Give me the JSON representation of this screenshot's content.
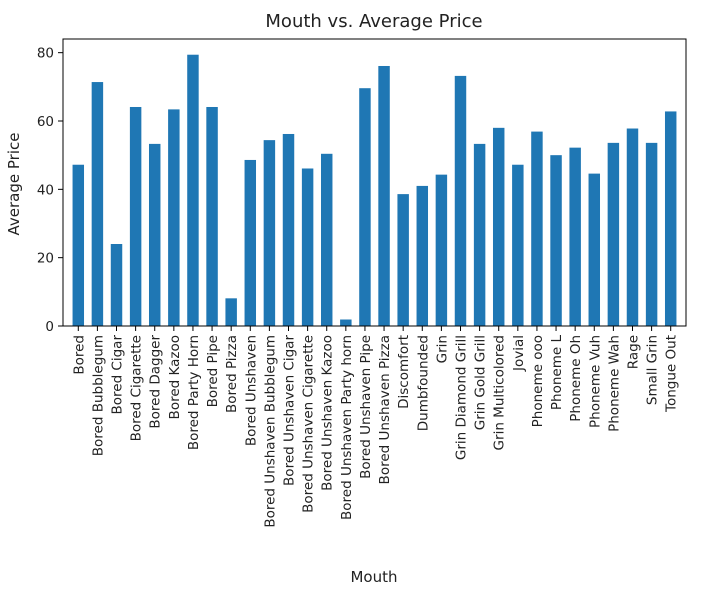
{
  "chart_data": {
    "type": "bar",
    "title": "Mouth vs. Average Price",
    "xlabel": "Mouth",
    "ylabel": "Average Price",
    "ylim": [
      0,
      84
    ],
    "yticks": [
      0,
      20,
      40,
      60,
      80
    ],
    "grid": false,
    "color": "#1f77b4",
    "categories": [
      "Bored",
      "Bored Bubblegum",
      "Bored Cigar",
      "Bored Cigarette",
      "Bored Dagger",
      "Bored Kazoo",
      "Bored Party Horn",
      "Bored Pipe",
      "Bored Pizza",
      "Bored Unshaven",
      "Bored Unshaven Bubblegum",
      "Bored Unshaven Cigar",
      "Bored Unshaven Cigarette",
      "Bored Unshaven Kazoo",
      "Bored Unshaven Party horn",
      "Bored Unshaven Pipe",
      "Bored Unshaven Pizza",
      "Discomfort",
      "Dumbfounded",
      "Grin",
      "Grin Diamond Grill",
      "Grin Gold Grill",
      "Grin Multicolored",
      "Jovial",
      "Phoneme  ooo",
      "Phoneme L",
      "Phoneme Oh",
      "Phoneme Vuh",
      "Phoneme Wah",
      "Rage",
      "Small Grin",
      "Tongue Out"
    ],
    "values": [
      47.2,
      71.4,
      24.0,
      64.1,
      53.3,
      63.4,
      79.4,
      64.1,
      8.1,
      48.6,
      54.4,
      56.2,
      46.1,
      50.4,
      1.9,
      69.6,
      76.1,
      38.6,
      41.0,
      44.3,
      73.2,
      53.3,
      58.0,
      47.2,
      56.9,
      50.0,
      52.2,
      44.6,
      53.6,
      57.8,
      53.6,
      62.8
    ]
  }
}
